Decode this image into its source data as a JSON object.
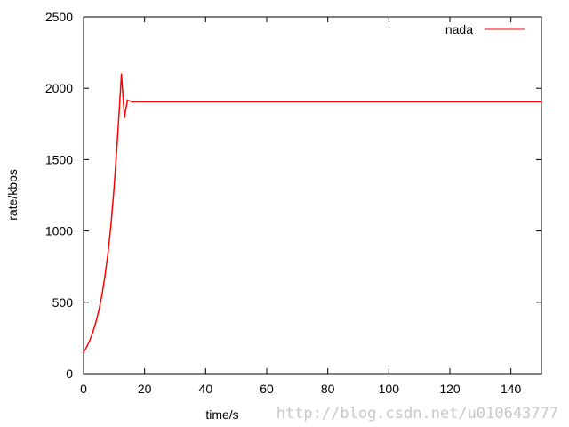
{
  "chart_data": {
    "type": "line",
    "title": "",
    "xlabel": "time/s",
    "ylabel": "rate/kbps",
    "xlim": [
      0,
      150
    ],
    "ylim": [
      0,
      2500
    ],
    "xticks": [
      0,
      20,
      40,
      60,
      80,
      100,
      120,
      140
    ],
    "yticks": [
      0,
      500,
      1000,
      1500,
      2000,
      2500
    ],
    "grid": false,
    "legend": "top-right",
    "series": [
      {
        "name": "nada",
        "color": "#ff0000",
        "x": [
          0,
          1,
          2,
          3,
          4,
          5,
          6,
          7,
          8,
          9,
          10,
          11,
          12,
          12.4,
          12.9,
          13.4,
          13.9,
          14.4,
          15,
          16,
          150
        ],
        "y": [
          150,
          186,
          231,
          287,
          356,
          442,
          548,
          680,
          845,
          1048,
          1300,
          1615,
          1950,
          2100,
          1950,
          1795,
          1860,
          1917,
          1912,
          1905,
          1905
        ]
      }
    ]
  },
  "watermark": "http://blog.csdn.net/u010643777"
}
